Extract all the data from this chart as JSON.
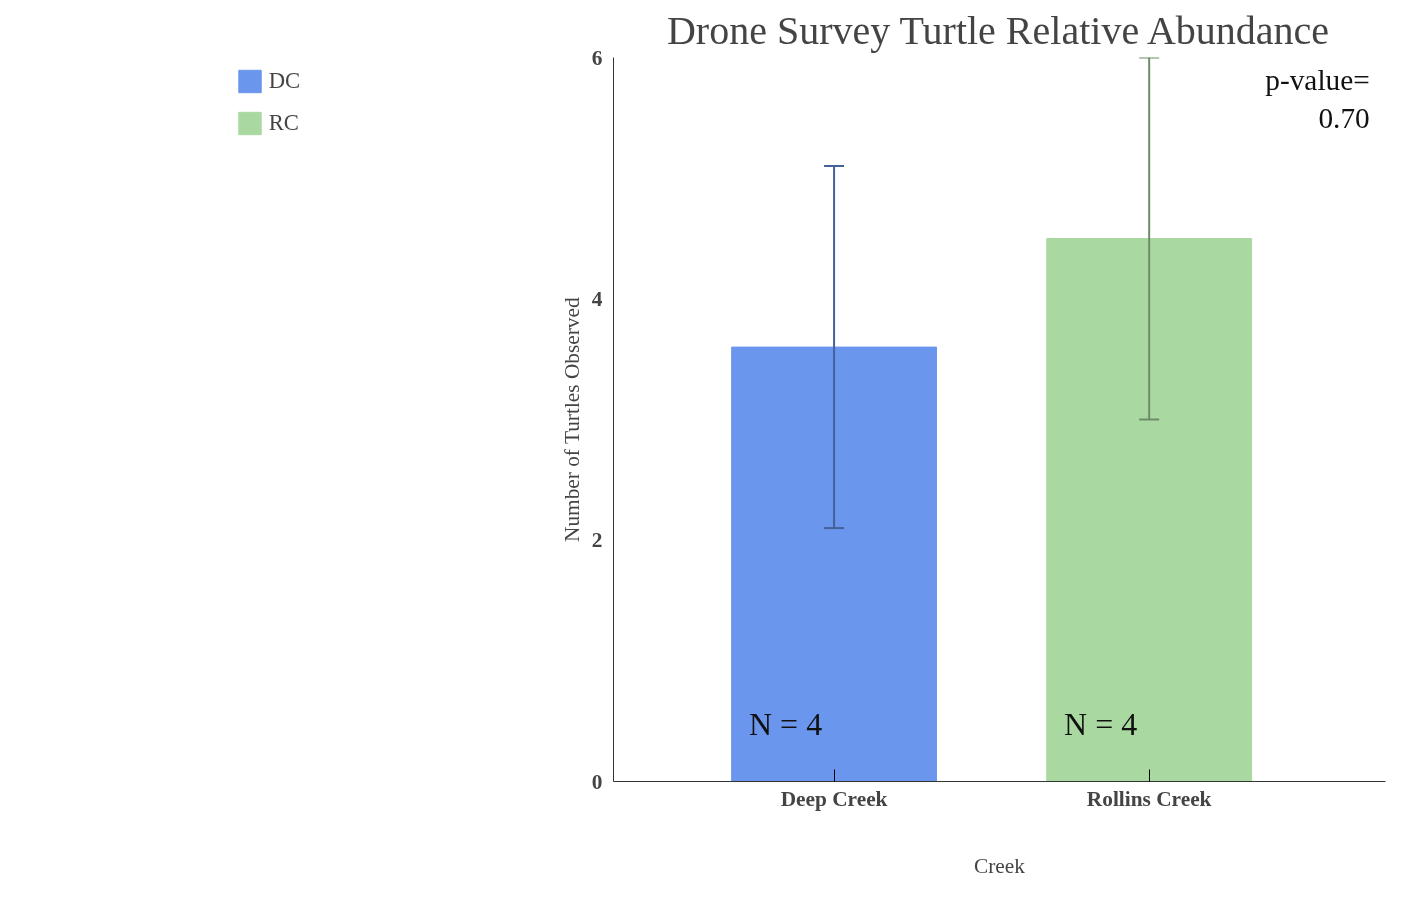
{
  "chart_data": {
    "type": "bar",
    "title": "Drone Survey Turtle Relative Abundance",
    "xlabel": "Creek",
    "ylabel": "Number of Turtles Observed",
    "categories": [
      "Deep Creek",
      "Rollins Creek"
    ],
    "series": [
      {
        "name": "DC",
        "color": "#6a96ed",
        "values": [
          3.6,
          null
        ],
        "errors": [
          1.5,
          null
        ]
      },
      {
        "name": "RC",
        "color": "#a9d9a0",
        "values": [
          null,
          4.5
        ],
        "errors": [
          null,
          1.5
        ]
      }
    ],
    "ylim": [
      0,
      6
    ],
    "yticks": [
      0,
      2,
      4,
      6
    ],
    "grid": false,
    "legend": "left",
    "annotations": [
      "N = 4",
      "N = 4",
      "p-value=\n0.70"
    ]
  }
}
